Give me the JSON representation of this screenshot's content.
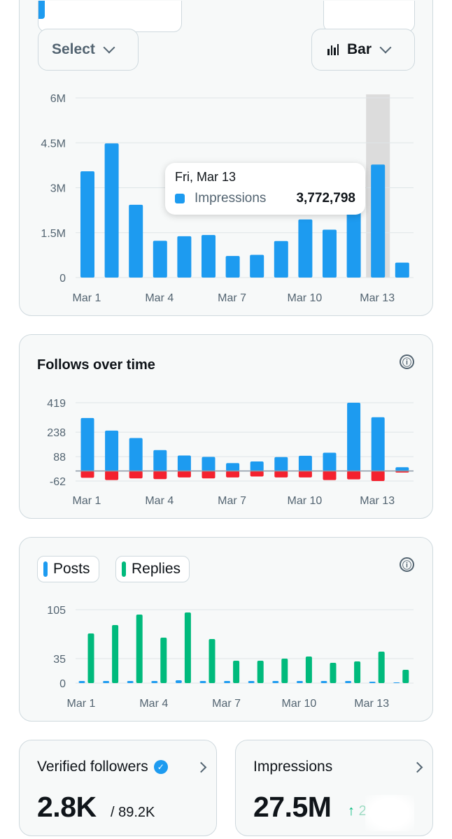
{
  "impressions_card": {
    "select_label": "Select",
    "chart_type_label": "Bar",
    "tooltip": {
      "date": "Fri, Mar 13",
      "label": "Impressions",
      "value": "3,772,798"
    }
  },
  "follows_card": {
    "title": "Follows over time",
    "info_icon": "ⓘ"
  },
  "posts_card": {
    "legend": [
      {
        "label": "Posts",
        "color": "#1d9bf0"
      },
      {
        "label": "Replies",
        "color": "#00ba7c"
      }
    ]
  },
  "stats": {
    "verified": {
      "title": "Verified followers",
      "value": "2.8K",
      "sub": "/ 89.2K"
    },
    "impressions": {
      "title": "Impressions",
      "value": "27.5M",
      "delta_arrow": "↑",
      "delta": "2"
    }
  },
  "colors": {
    "blue": "#1d9bf0",
    "red": "#f4212e",
    "green": "#00ba7c",
    "grid": "#dfe5e8",
    "highlight": "#dcdcdc"
  },
  "chart_data": [
    {
      "type": "bar",
      "series_label": "Impressions",
      "x_tick_labels": [
        "Mar 1",
        "Mar 4",
        "Mar 7",
        "Mar 10",
        "Mar 13"
      ],
      "y_tick_labels": [
        "6M",
        "4.5M",
        "3M",
        "1.5M",
        "0"
      ],
      "y_ticks": [
        6000000,
        4500000,
        3000000,
        1500000,
        0
      ],
      "ylim": [
        0,
        6000000
      ],
      "categories": [
        "Mar 1",
        "Mar 2",
        "Mar 3",
        "Mar 4",
        "Mar 5",
        "Mar 6",
        "Mar 7",
        "Mar 8",
        "Mar 9",
        "Mar 10",
        "Mar 11",
        "Mar 12",
        "Mar 13",
        "Mar 14"
      ],
      "values": [
        3550000,
        4480000,
        2430000,
        1230000,
        1380000,
        1420000,
        720000,
        760000,
        1220000,
        1940000,
        1600000,
        2200000,
        3772798,
        500000
      ],
      "highlight_category": "Mar 13",
      "grid": true
    },
    {
      "type": "bar",
      "x_tick_labels": [
        "Mar 1",
        "Mar 4",
        "Mar 7",
        "Mar 10",
        "Mar 13"
      ],
      "y_tick_labels": [
        "419",
        "238",
        "88",
        "-62"
      ],
      "y_ticks": [
        419,
        238,
        88,
        -62
      ],
      "ylim": [
        -62,
        419
      ],
      "categories": [
        "Mar 1",
        "Mar 2",
        "Mar 3",
        "Mar 4",
        "Mar 5",
        "Mar 6",
        "Mar 7",
        "Mar 8",
        "Mar 9",
        "Mar 10",
        "Mar 11",
        "Mar 12",
        "Mar 13",
        "Mar 14"
      ],
      "series": [
        {
          "color": "#1d9bf0",
          "values": [
            325,
            248,
            202,
            128,
            95,
            86,
            48,
            58,
            85,
            93,
            112,
            419,
            330,
            23
          ]
        },
        {
          "color": "#f4212e",
          "values": [
            -42,
            -56,
            -46,
            -50,
            -40,
            -46,
            -40,
            -34,
            -40,
            -40,
            -56,
            -52,
            -62,
            -10
          ]
        }
      ],
      "grid": true
    },
    {
      "type": "bar",
      "x_tick_labels": [
        "Mar 1",
        "Mar 4",
        "Mar 7",
        "Mar 10",
        "Mar 13"
      ],
      "y_tick_labels": [
        "105",
        "35",
        "0"
      ],
      "y_ticks": [
        105,
        35,
        0
      ],
      "ylim": [
        0,
        105
      ],
      "categories": [
        "Mar 1",
        "Mar 2",
        "Mar 3",
        "Mar 4",
        "Mar 5",
        "Mar 6",
        "Mar 7",
        "Mar 8",
        "Mar 9",
        "Mar 10",
        "Mar 11",
        "Mar 12",
        "Mar 13",
        "Mar 14"
      ],
      "series": [
        {
          "name": "Posts",
          "color": "#1d9bf0",
          "values": [
            3,
            3,
            3,
            3,
            4,
            3,
            3,
            3,
            3,
            3,
            3,
            3,
            2,
            1
          ]
        },
        {
          "name": "Replies",
          "color": "#00ba7c",
          "values": [
            71,
            83,
            98,
            65,
            101,
            63,
            32,
            32,
            35,
            38,
            29,
            31,
            45,
            19
          ]
        }
      ],
      "grid": true
    }
  ]
}
